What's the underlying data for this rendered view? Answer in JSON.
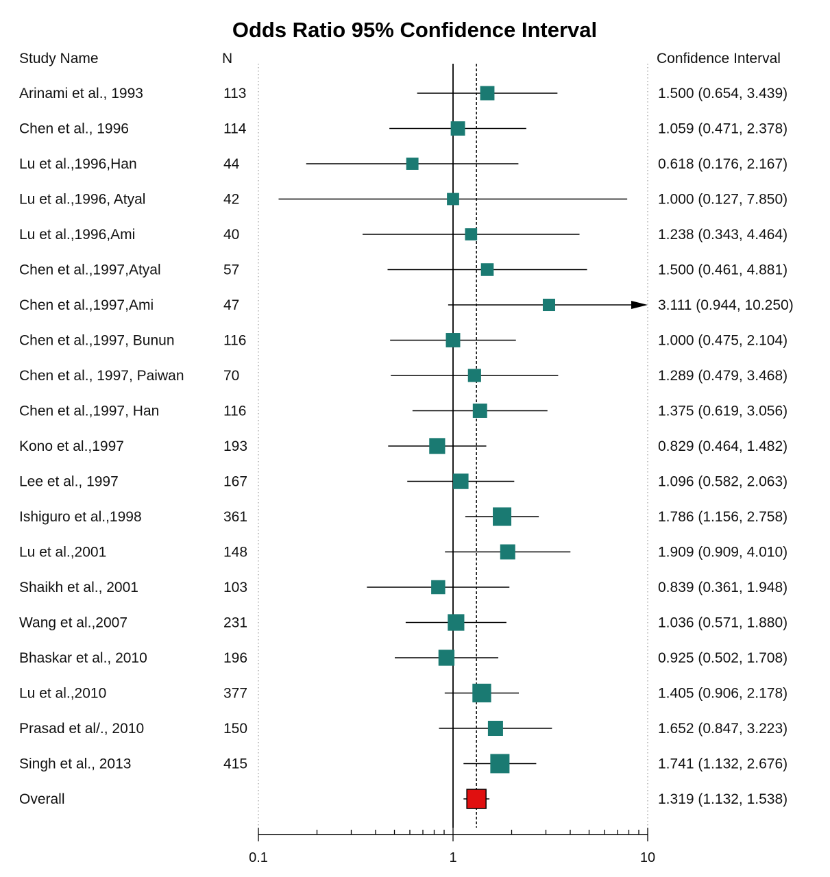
{
  "chart_data": {
    "type": "forest",
    "title": "Odds Ratio 95% Confidence Interval",
    "headers": {
      "study": "Study Name",
      "n": "N",
      "ci": "Confidence Interval"
    },
    "x_scale": "log",
    "xlim": [
      0.1,
      10
    ],
    "x_ticks": [
      {
        "value": 0.1,
        "label": "0.1"
      },
      {
        "value": 1,
        "label": "1"
      },
      {
        "value": 10,
        "label": "10"
      }
    ],
    "reference_line": 1,
    "pooled_line": 1.319,
    "colors": {
      "study_marker": "#1a7a72",
      "overall_marker": "#e01010",
      "line": "#000000"
    },
    "studies": [
      {
        "name": "Arinami et al., 1993",
        "n": "113",
        "or": 1.5,
        "lower": 0.654,
        "upper": 3.439,
        "ci_text": "1.500 (0.654, 3.439)"
      },
      {
        "name": "Chen et al., 1996",
        "n": "114",
        "or": 1.059,
        "lower": 0.471,
        "upper": 2.378,
        "ci_text": "1.059 (0.471, 2.378)"
      },
      {
        "name": "Lu et al.,1996,Han",
        "n": "44",
        "or": 0.618,
        "lower": 0.176,
        "upper": 2.167,
        "ci_text": "0.618 (0.176, 2.167)"
      },
      {
        "name": "Lu et al.,1996, Atyal",
        "n": "42",
        "or": 1.0,
        "lower": 0.127,
        "upper": 7.85,
        "ci_text": "1.000 (0.127, 7.850)"
      },
      {
        "name": "Lu et al.,1996,Ami",
        "n": "40",
        "or": 1.238,
        "lower": 0.343,
        "upper": 4.464,
        "ci_text": "1.238 (0.343, 4.464)"
      },
      {
        "name": "Chen et al.,1997,Atyal",
        "n": "57",
        "or": 1.5,
        "lower": 0.461,
        "upper": 4.881,
        "ci_text": "1.500 (0.461, 4.881)"
      },
      {
        "name": "Chen et al.,1997,Ami",
        "n": "47",
        "or": 3.111,
        "lower": 0.944,
        "upper": 10.25,
        "ci_text": "3.111 (0.944, 10.250)"
      },
      {
        "name": "Chen et al.,1997, Bunun",
        "n": "116",
        "or": 1.0,
        "lower": 0.475,
        "upper": 2.104,
        "ci_text": "1.000 (0.475, 2.104)"
      },
      {
        "name": "Chen et al., 1997, Paiwan",
        "n": "70",
        "or": 1.289,
        "lower": 0.479,
        "upper": 3.468,
        "ci_text": "1.289 (0.479, 3.468)"
      },
      {
        "name": "Chen et al.,1997, Han",
        "n": "116",
        "or": 1.375,
        "lower": 0.619,
        "upper": 3.056,
        "ci_text": "1.375 (0.619, 3.056)"
      },
      {
        "name": "Kono et al.,1997",
        "n": "193",
        "or": 0.829,
        "lower": 0.464,
        "upper": 1.482,
        "ci_text": "0.829 (0.464, 1.482)"
      },
      {
        "name": "Lee et al., 1997",
        "n": "167",
        "or": 1.096,
        "lower": 0.582,
        "upper": 2.063,
        "ci_text": "1.096 (0.582, 2.063)"
      },
      {
        "name": "Ishiguro et al.,1998",
        "n": "361",
        "or": 1.786,
        "lower": 1.156,
        "upper": 2.758,
        "ci_text": "1.786 (1.156, 2.758)"
      },
      {
        "name": "Lu et al.,2001",
        "n": "148",
        "or": 1.909,
        "lower": 0.909,
        "upper": 4.01,
        "ci_text": "1.909 (0.909, 4.010)"
      },
      {
        "name": "Shaikh et al., 2001",
        "n": "103",
        "or": 0.839,
        "lower": 0.361,
        "upper": 1.948,
        "ci_text": "0.839 (0.361, 1.948)"
      },
      {
        "name": "Wang et al.,2007",
        "n": "231",
        "or": 1.036,
        "lower": 0.571,
        "upper": 1.88,
        "ci_text": "1.036 (0.571, 1.880)"
      },
      {
        "name": "Bhaskar et al., 2010",
        "n": "196",
        "or": 0.925,
        "lower": 0.502,
        "upper": 1.708,
        "ci_text": "0.925 (0.502, 1.708)"
      },
      {
        "name": "Lu et al.,2010",
        "n": "377",
        "or": 1.405,
        "lower": 0.906,
        "upper": 2.178,
        "ci_text": "1.405 (0.906, 2.178)"
      },
      {
        "name": "Prasad et al/., 2010",
        "n": "150",
        "or": 1.652,
        "lower": 0.847,
        "upper": 3.223,
        "ci_text": "1.652 (0.847, 3.223)"
      },
      {
        "name": "Singh et al., 2013",
        "n": "415",
        "or": 1.741,
        "lower": 1.132,
        "upper": 2.676,
        "ci_text": "1.741 (1.132, 2.676)"
      }
    ],
    "overall": {
      "name": "Overall",
      "or": 1.319,
      "lower": 1.132,
      "upper": 1.538,
      "ci_text": "1.319 (1.132, 1.538)"
    }
  }
}
